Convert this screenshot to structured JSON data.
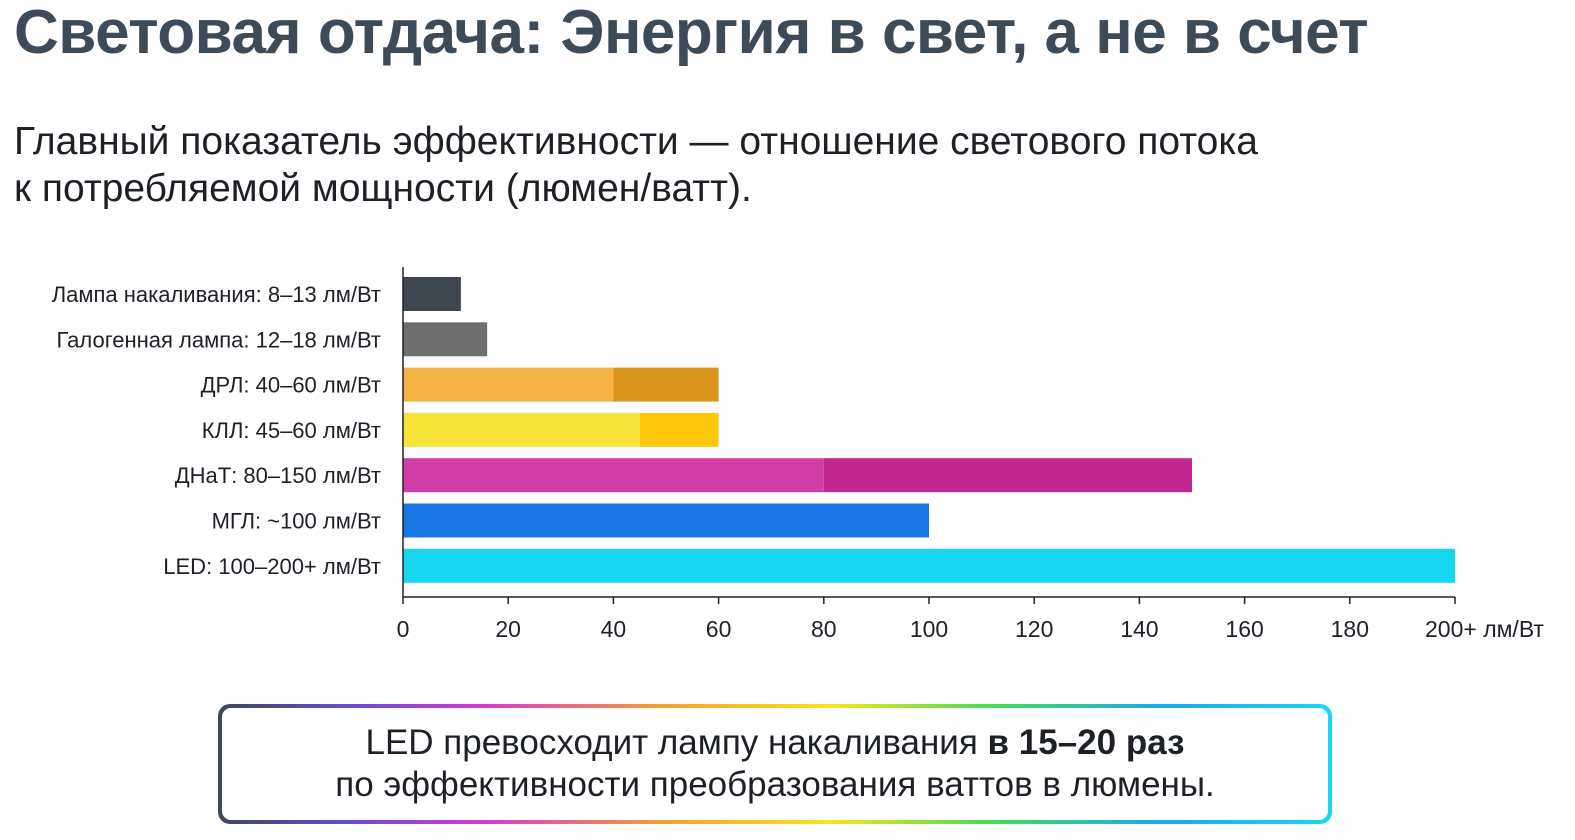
{
  "title": "Световая отдача: Энергия в свет, а не в счет",
  "subtitle": {
    "line1": "Главный показатель эффективности — отношение светового потока",
    "line2": "к потребляемой мощности (люмен/ватт)."
  },
  "chart_data": {
    "type": "bar",
    "orientation": "horizontal",
    "categories": [
      "Лампа накаливания: 8–13 лм/Вт",
      "Галогенная лампа: 12–18 лм/Вт",
      "ДРЛ: 40–60 лм/Вт",
      "КЛЛ: 45–60 лм/Вт",
      "ДНаТ: 80–150 лм/Вт",
      "МГЛ: ~100 лм/Вт",
      "LED: 100–200+ лм/Вт"
    ],
    "ranges": [
      [
        0,
        11
      ],
      [
        0,
        16
      ],
      [
        40,
        60
      ],
      [
        45,
        60
      ],
      [
        80,
        150
      ],
      [
        0,
        100
      ],
      [
        0,
        200
      ]
    ],
    "colors": [
      {
        "base": "#3e4650",
        "range": "#3e4650"
      },
      {
        "base": "#6f6f6f",
        "range": "#6f6f6f"
      },
      {
        "base": "#f6b446",
        "range": "#d9951c"
      },
      {
        "base": "#f9e53a",
        "range": "#fdc70a"
      },
      {
        "base": "#d13ea8",
        "range": "#c2268f"
      },
      {
        "base": "#1877e4",
        "range": "#1877e4"
      },
      {
        "base": "#16d6f0",
        "range": "#16d6f0"
      }
    ],
    "xlim": [
      0,
      200
    ],
    "xticks": [
      0,
      20,
      40,
      60,
      80,
      100,
      120,
      140,
      160,
      180,
      200
    ],
    "xtick_labels": [
      "0",
      "20",
      "40",
      "60",
      "80",
      "100",
      "120",
      "140",
      "160",
      "180",
      "200+ лм/Вт"
    ],
    "grid": false,
    "legend": "none"
  },
  "callout": {
    "line1_pre": "LED превосходит лампу накаливания ",
    "line1_bold": "в 15–20 раз",
    "line2": "по эффективности преобразования ваттов в люмены."
  }
}
